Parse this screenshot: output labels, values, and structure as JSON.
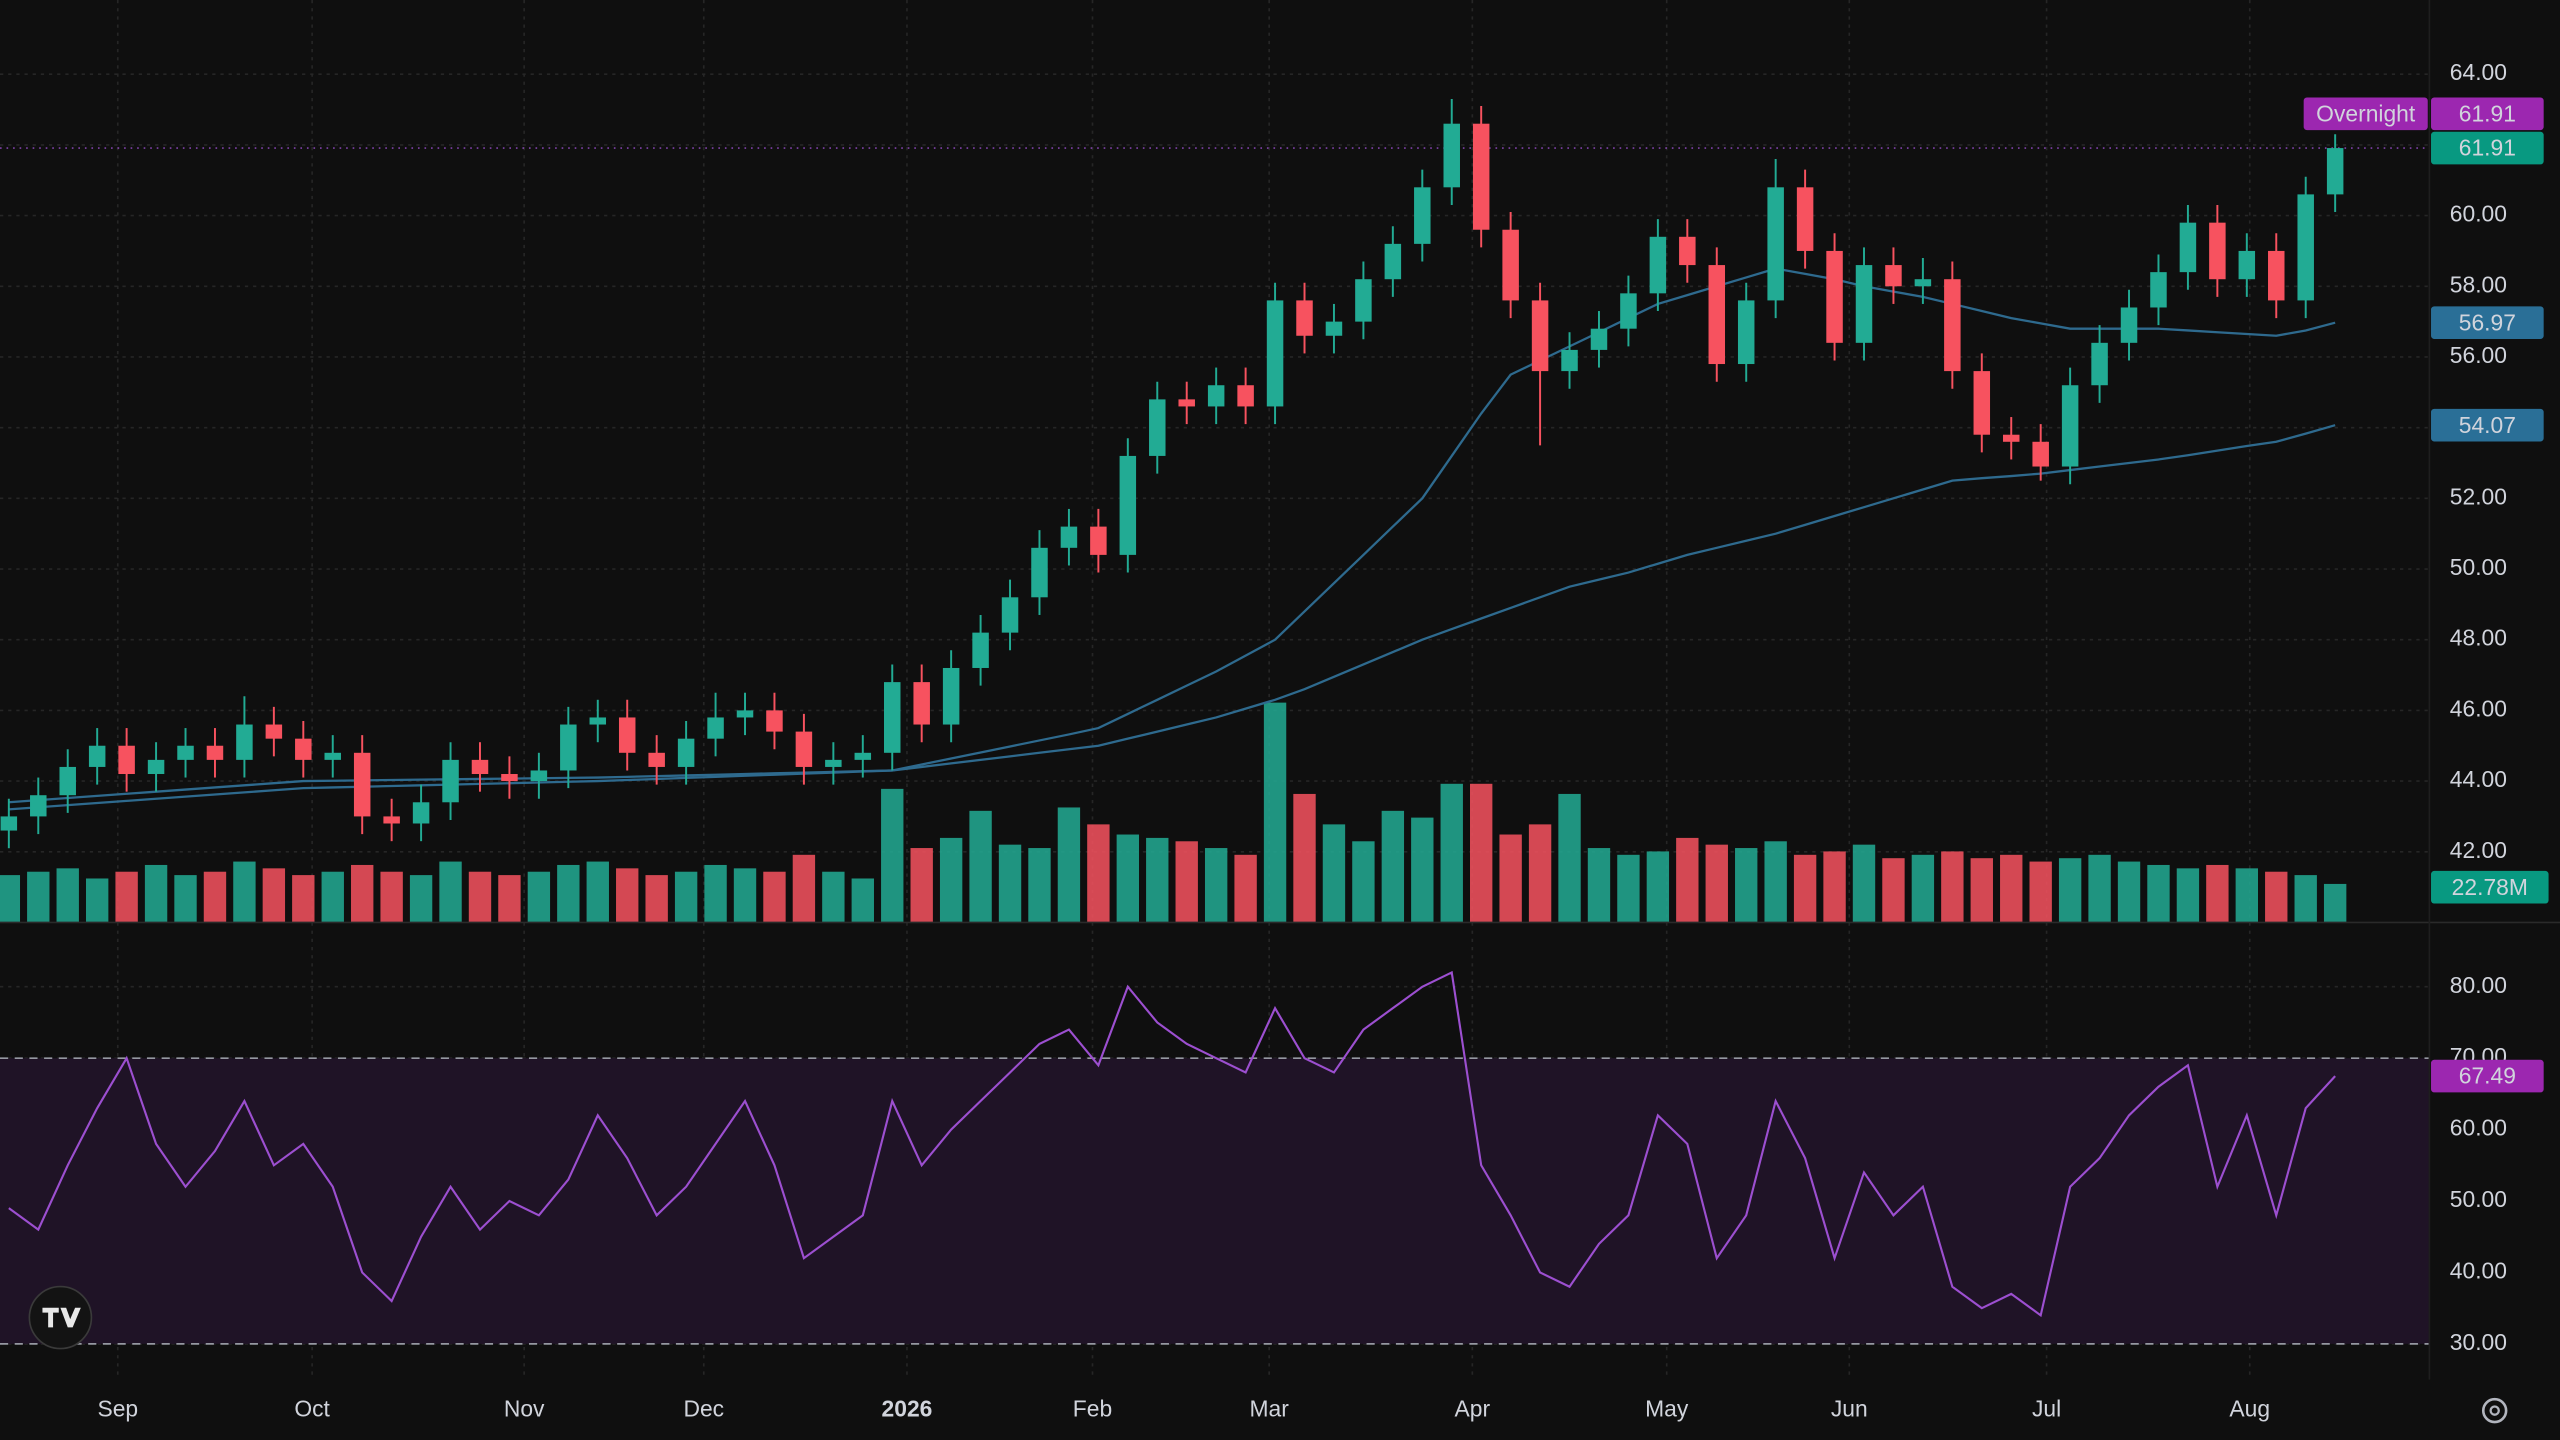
{
  "chart_data": {
    "type": "candlestick",
    "up_color": "#22ab94",
    "down_color": "#f7525f",
    "xlim": [
      -0.3,
      82.2
    ],
    "xticks": [
      {
        "value": 3.7,
        "label": "Sep"
      },
      {
        "value": 10.3,
        "label": "Oct"
      },
      {
        "value": 17.5,
        "label": "Nov"
      },
      {
        "value": 23.6,
        "label": "Dec"
      },
      {
        "value": 30.5,
        "label": "2026"
      },
      {
        "value": 36.8,
        "label": "Feb"
      },
      {
        "value": 42.8,
        "label": "Mar"
      },
      {
        "value": 49.7,
        "label": "Apr"
      },
      {
        "value": 56.3,
        "label": "May"
      },
      {
        "value": 62.5,
        "label": "Jun"
      },
      {
        "value": 69.2,
        "label": "Jul"
      },
      {
        "value": 76.1,
        "label": "Aug"
      }
    ],
    "ylim": [
      40,
      66.1
    ],
    "yticks": [
      {
        "value": 42,
        "label": "42.00"
      },
      {
        "value": 44,
        "label": "44.00"
      },
      {
        "value": 46,
        "label": "46.00"
      },
      {
        "value": 48,
        "label": "48.00"
      },
      {
        "value": 50,
        "label": "50.00"
      },
      {
        "value": 52,
        "label": "52.00"
      },
      {
        "value": 54,
        "label": "54.00"
      },
      {
        "value": 56,
        "label": "56.00"
      },
      {
        "value": 58,
        "label": "58.00"
      },
      {
        "value": 60,
        "label": "60.00"
      },
      {
        "value": 62,
        "label": "62.00"
      },
      {
        "value": 64,
        "label": "64.00"
      }
    ],
    "open": [
      42.6,
      43.0,
      43.6,
      44.4,
      45.0,
      44.2,
      44.6,
      45.0,
      44.6,
      45.6,
      45.2,
      44.6,
      44.8,
      43.0,
      42.8,
      43.4,
      44.6,
      44.2,
      44.0,
      44.3,
      45.6,
      45.8,
      44.8,
      44.4,
      45.2,
      45.8,
      46.0,
      45.4,
      44.4,
      44.6,
      44.8,
      46.8,
      45.6,
      47.2,
      48.2,
      49.2,
      50.6,
      51.2,
      50.4,
      53.2,
      54.8,
      54.6,
      55.2,
      54.6,
      57.6,
      56.6,
      57.0,
      58.2,
      59.2,
      60.8,
      62.6,
      59.6,
      57.6,
      55.6,
      56.2,
      56.8,
      57.8,
      59.4,
      58.6,
      55.8,
      57.6,
      60.8,
      59.0,
      56.4,
      58.6,
      58.0,
      58.2,
      55.6,
      53.8,
      53.6,
      52.9,
      55.2,
      56.4,
      57.4,
      58.4,
      59.8,
      58.2,
      59.0,
      57.6,
      60.6
    ],
    "high": [
      43.5,
      44.1,
      44.9,
      45.5,
      45.5,
      45.1,
      45.5,
      45.5,
      46.4,
      46.1,
      45.7,
      45.3,
      45.3,
      43.5,
      43.9,
      45.1,
      45.1,
      44.7,
      44.8,
      46.1,
      46.3,
      46.3,
      45.3,
      45.7,
      46.5,
      46.5,
      46.5,
      45.9,
      45.1,
      45.3,
      47.3,
      47.3,
      47.7,
      48.7,
      49.7,
      51.1,
      51.7,
      51.7,
      53.7,
      55.3,
      55.3,
      55.7,
      55.7,
      58.1,
      58.1,
      57.5,
      58.7,
      59.7,
      61.3,
      63.3,
      63.1,
      60.1,
      58.1,
      56.7,
      57.3,
      58.3,
      59.9,
      59.9,
      59.1,
      58.1,
      61.6,
      61.3,
      59.5,
      59.1,
      59.1,
      58.8,
      58.7,
      56.1,
      54.3,
      54.1,
      55.7,
      56.9,
      57.9,
      58.9,
      60.3,
      60.3,
      59.5,
      59.5,
      61.1,
      62.3
    ],
    "low": [
      42.1,
      42.5,
      43.1,
      43.9,
      43.7,
      43.7,
      44.1,
      44.1,
      44.1,
      44.7,
      44.1,
      44.1,
      42.5,
      42.3,
      42.3,
      42.9,
      43.7,
      43.5,
      43.5,
      43.8,
      45.1,
      44.3,
      43.9,
      43.9,
      44.7,
      45.3,
      44.9,
      43.9,
      43.9,
      44.1,
      44.3,
      45.1,
      45.1,
      46.7,
      47.7,
      48.7,
      50.1,
      49.9,
      49.9,
      52.7,
      54.1,
      54.1,
      54.1,
      54.1,
      56.1,
      56.1,
      56.5,
      57.7,
      58.7,
      60.3,
      59.1,
      57.1,
      53.5,
      55.1,
      55.7,
      56.3,
      57.3,
      58.1,
      55.3,
      55.3,
      57.1,
      58.5,
      55.9,
      55.9,
      57.5,
      57.5,
      55.1,
      53.3,
      53.1,
      52.5,
      52.4,
      54.7,
      55.9,
      56.9,
      57.9,
      57.7,
      57.7,
      57.1,
      57.1,
      60.1
    ],
    "close": [
      43.0,
      43.6,
      44.4,
      45.0,
      44.2,
      44.6,
      45.0,
      44.6,
      45.6,
      45.2,
      44.6,
      44.8,
      43.0,
      42.8,
      43.4,
      44.6,
      44.2,
      44.0,
      44.3,
      45.6,
      45.8,
      44.8,
      44.4,
      45.2,
      45.8,
      46.0,
      45.4,
      44.4,
      44.6,
      44.8,
      46.8,
      45.6,
      47.2,
      48.2,
      49.2,
      50.6,
      51.2,
      50.4,
      53.2,
      54.8,
      54.6,
      55.2,
      54.6,
      57.6,
      56.6,
      57.0,
      58.2,
      59.2,
      60.8,
      62.6,
      59.6,
      57.6,
      55.6,
      56.2,
      56.8,
      57.8,
      59.4,
      58.6,
      55.8,
      57.6,
      60.8,
      59.0,
      56.4,
      58.6,
      58.0,
      58.2,
      55.6,
      53.8,
      53.6,
      52.9,
      55.2,
      56.4,
      57.4,
      58.4,
      59.8,
      58.2,
      59.0,
      57.6,
      60.6,
      61.91
    ],
    "overnight": {
      "label": "Overnight",
      "value": 61.91
    },
    "moving_averages": [
      {
        "color": "#2e6a8e",
        "values": [
          43.4,
          43.46,
          43.52,
          43.58,
          43.64,
          43.7,
          43.76,
          43.82,
          43.88,
          43.94,
          44.0,
          44.01,
          44.02,
          44.03,
          44.04,
          44.05,
          44.06,
          44.07,
          44.08,
          44.09,
          44.1,
          44.12,
          44.14,
          44.16,
          44.18,
          44.2,
          44.22,
          44.24,
          44.26,
          44.28,
          44.3,
          44.47,
          44.64,
          44.81,
          44.98,
          45.15,
          45.32,
          45.5,
          45.9,
          46.3,
          46.7,
          47.1,
          47.55,
          48.0,
          48.8,
          49.6,
          50.4,
          51.2,
          52.0,
          53.2,
          54.4,
          55.5,
          55.9,
          56.3,
          56.7,
          57.1,
          57.5,
          57.75,
          58.0,
          58.25,
          58.5,
          58.35,
          58.2,
          58.0,
          57.85,
          57.7,
          57.5,
          57.3,
          57.1,
          56.95,
          56.8,
          56.8,
          56.8,
          56.8,
          56.75,
          56.7,
          56.65,
          56.6,
          56.75,
          56.97
        ]
      },
      {
        "color": "#2e6a8e",
        "values": [
          43.2,
          43.26,
          43.32,
          43.38,
          43.44,
          43.5,
          43.56,
          43.62,
          43.68,
          43.74,
          43.8,
          43.82,
          43.84,
          43.86,
          43.88,
          43.9,
          43.92,
          43.94,
          43.96,
          43.98,
          44.0,
          44.03,
          44.06,
          44.09,
          44.12,
          44.15,
          44.18,
          44.21,
          44.24,
          44.27,
          44.3,
          44.4,
          44.5,
          44.6,
          44.7,
          44.8,
          44.9,
          45.0,
          45.2,
          45.4,
          45.6,
          45.8,
          46.05,
          46.3,
          46.6,
          46.95,
          47.3,
          47.65,
          48.0,
          48.3,
          48.6,
          48.9,
          49.2,
          49.5,
          49.7,
          49.9,
          50.15,
          50.4,
          50.6,
          50.8,
          51.0,
          51.25,
          51.5,
          51.75,
          52.0,
          52.25,
          52.5,
          52.57,
          52.63,
          52.7,
          52.8,
          52.9,
          53.0,
          53.1,
          53.22,
          53.35,
          53.48,
          53.6,
          53.83,
          54.07
        ]
      }
    ],
    "volume": {
      "ylim": [
        0,
        140
      ],
      "last_value_label": "22.78M",
      "values": [
        28,
        30,
        32,
        26,
        30,
        34,
        28,
        30,
        36,
        32,
        28,
        30,
        34,
        30,
        28,
        36,
        30,
        28,
        30,
        34,
        36,
        32,
        28,
        30,
        34,
        32,
        30,
        40,
        30,
        26,
        79,
        44,
        50,
        66,
        46,
        44,
        68,
        58,
        52,
        50,
        48,
        44,
        40,
        130,
        76,
        58,
        48,
        66,
        62,
        82,
        82,
        52,
        58,
        76,
        44,
        40,
        42,
        50,
        46,
        44,
        48,
        40,
        42,
        46,
        38,
        40,
        42,
        38,
        40,
        36,
        38,
        40,
        36,
        34,
        32,
        34,
        32,
        30,
        28,
        22.78
      ]
    },
    "rsi": {
      "color": "#9c4fd0",
      "ylim": [
        25,
        89
      ],
      "band": [
        30,
        70
      ],
      "yticks": [
        {
          "value": 30,
          "label": "30.00"
        },
        {
          "value": 40,
          "label": "40.00"
        },
        {
          "value": 50,
          "label": "50.00"
        },
        {
          "value": 60,
          "label": "60.00"
        },
        {
          "value": 70,
          "label": "70.00"
        },
        {
          "value": 80,
          "label": "80.00"
        }
      ],
      "values": [
        49,
        46,
        55,
        63,
        70,
        58,
        52,
        57,
        64,
        55,
        58,
        52,
        40,
        36,
        45,
        52,
        46,
        50,
        48,
        53,
        62,
        56,
        48,
        52,
        58,
        64,
        55,
        42,
        45,
        48,
        64,
        55,
        60,
        64,
        68,
        72,
        74,
        69,
        80,
        75,
        72,
        70,
        68,
        77,
        70,
        68,
        74,
        77,
        80,
        82,
        55,
        48,
        40,
        38,
        44,
        48,
        62,
        58,
        42,
        48,
        64,
        56,
        42,
        54,
        48,
        52,
        38,
        35,
        37,
        34,
        52,
        56,
        62,
        66,
        69,
        52,
        62,
        48,
        63,
        67.49
      ]
    }
  }
}
